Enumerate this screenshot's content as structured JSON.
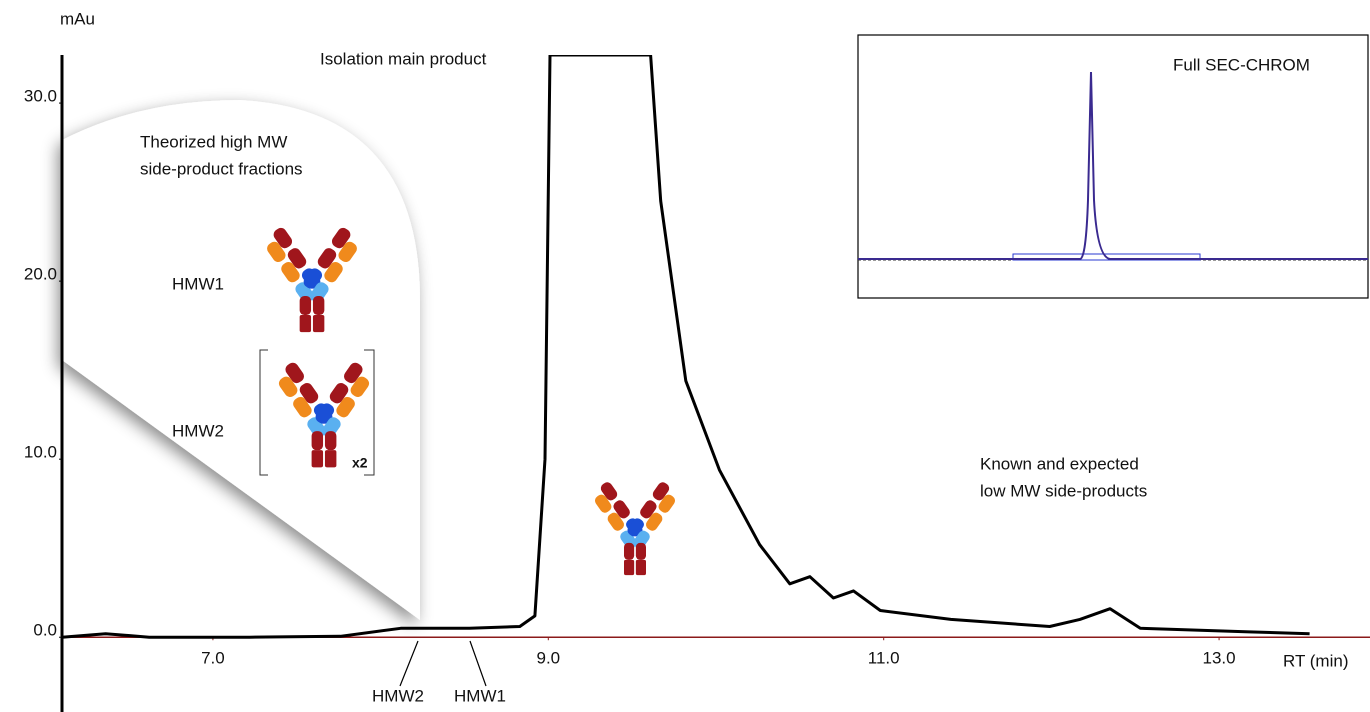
{
  "chart_data": {
    "type": "line",
    "y_label": "mAu",
    "x_label": "RT (min)",
    "xlim": [
      6.1,
      13.9
    ],
    "ylim": [
      -4.2,
      32.7
    ],
    "xticks": [
      {
        "value": 7,
        "label": "7.0"
      },
      {
        "value": 9,
        "label": "9.0"
      },
      {
        "value": 11,
        "label": "11.0"
      },
      {
        "value": 13,
        "label": "13.0"
      }
    ],
    "yticks": [
      {
        "value": 0,
        "label": "0.0"
      },
      {
        "value": 10,
        "label": "10.0"
      },
      {
        "value": 20,
        "label": "20.0"
      },
      {
        "value": 30,
        "label": "30.0"
      }
    ],
    "baseline_color": "#8b1a1a",
    "x": [
      6.1,
      6.36,
      6.62,
      7.22,
      7.76,
      8.12,
      8.53,
      8.83,
      8.92,
      8.98,
      9.01,
      9.61,
      9.67,
      9.82,
      10.02,
      10.26,
      10.44,
      10.56,
      10.7,
      10.82,
      10.98,
      11.4,
      11.99,
      12.17,
      12.35,
      12.53,
      13.18,
      13.54
    ],
    "series": [
      {
        "color": "#000000",
        "values": [
          0,
          0.2,
          0,
          0,
          0.05,
          0.5,
          0.5,
          0.6,
          1.2,
          10,
          32.7,
          32.7,
          24.5,
          14.4,
          9.4,
          5.2,
          3.0,
          3.4,
          2.2,
          2.6,
          1.5,
          1.0,
          0.6,
          1.0,
          1.6,
          0.5,
          0.3,
          0.2
        ]
      }
    ],
    "annotations": {
      "main_peak": "Isolation main product",
      "high_mw": [
        "Theorized high MW",
        "side-product fractions"
      ],
      "hmw1_icon": "HMW1",
      "hmw2_icon": "HMW2",
      "multiplier": "x2",
      "hmw2_peak": "HMW2",
      "hmw1_peak": "HMW1",
      "low_mw": [
        "Known and expected",
        "low MW side-products"
      ],
      "inset_title": "Full SEC-CHROM"
    }
  }
}
